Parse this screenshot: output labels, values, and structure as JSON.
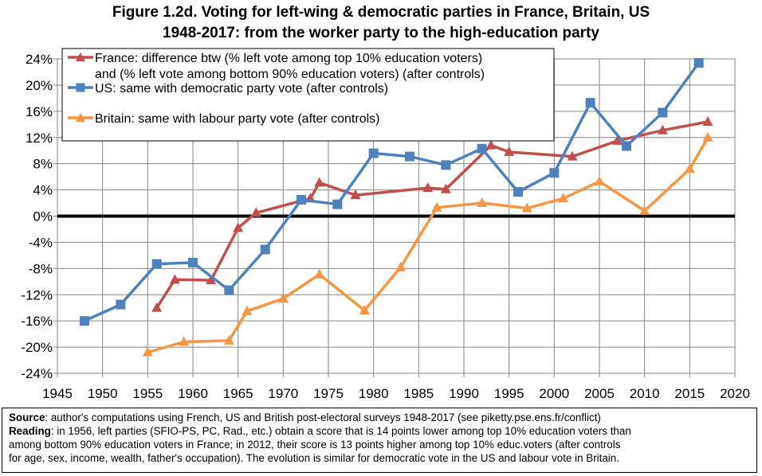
{
  "title_line1": "Figure 1.2d. Voting for left-wing & democratic parties in France, Britain, US",
  "title_line2": "1948-2017: from the worker party to the high-education party",
  "chart_data": {
    "type": "line",
    "title": "Figure 1.2d. Voting for left-wing & democratic parties in France, Britain, US 1948-2017: from the worker party to the high-education party",
    "xlabel": "",
    "ylabel": "",
    "xlim": [
      1945,
      2020
    ],
    "ylim": [
      -24,
      24
    ],
    "x_ticks": [
      1945,
      1950,
      1955,
      1960,
      1965,
      1970,
      1975,
      1980,
      1985,
      1990,
      1995,
      2000,
      2005,
      2010,
      2015,
      2020
    ],
    "y_ticks": [
      -24,
      -20,
      -16,
      -12,
      -8,
      -4,
      0,
      4,
      8,
      12,
      16,
      20,
      24
    ],
    "y_tick_labels": [
      "-24%",
      "-20%",
      "-16%",
      "-12%",
      "-8%",
      "-4%",
      "0%",
      "4%",
      "8%",
      "12%",
      "16%",
      "20%",
      "24%"
    ],
    "grid": true,
    "legend_position": "top-left",
    "series": [
      {
        "name": "France: difference btw (% left vote among top 10% education voters) and (% left vote among bottom 90% education voters) (after controls)",
        "legend_line1": "France: difference btw (% left vote among top 10% education voters)",
        "legend_line2": "and (% left vote among bottom 90% education voters) (after controls)",
        "color": "#c0504d",
        "marker": "triangle",
        "x": [
          1956,
          1958,
          1962,
          1965,
          1967,
          1973,
          1974,
          1978,
          1986,
          1988,
          1993,
          1995,
          2002,
          2007,
          2012,
          2017
        ],
        "y": [
          -14,
          -9.7,
          -9.8,
          -1.8,
          0.5,
          2.7,
          5.1,
          3.2,
          4.3,
          4.1,
          10.8,
          9.8,
          9.1,
          11.5,
          13.1,
          14.4
        ]
      },
      {
        "name": "US: same with democratic party vote (after controls)",
        "legend_line1": "US: same with democratic party vote (after controls)",
        "color": "#4f81bd",
        "marker": "square",
        "x": [
          1948,
          1952,
          1956,
          1960,
          1964,
          1968,
          1972,
          1976,
          1980,
          1984,
          1988,
          1992,
          1996,
          2000,
          2004,
          2008,
          2012,
          2016
        ],
        "y": [
          -16,
          -13.5,
          -7.3,
          -7.1,
          -11.3,
          -5.1,
          2.5,
          1.8,
          9.6,
          9.1,
          7.8,
          10.3,
          3.7,
          6.6,
          17.3,
          10.7,
          15.8,
          23.4
        ]
      },
      {
        "name": "Britain: same with labour party vote (after controls)",
        "legend_line1": "Britain: same with labour party vote (after controls)",
        "color": "#f79646",
        "marker": "triangle",
        "x": [
          1955,
          1959,
          1964,
          1966,
          1970,
          1974,
          1979,
          1983,
          1987,
          1992,
          1997,
          2001,
          2005,
          2010,
          2015,
          2017
        ],
        "y": [
          -20.8,
          -19.2,
          -19.0,
          -14.5,
          -12.6,
          -8.9,
          -14.4,
          -7.8,
          1.3,
          2.0,
          1.2,
          2.7,
          5.3,
          0.8,
          7.2,
          12.0
        ]
      }
    ]
  },
  "notes": {
    "source_label": "Source",
    "source_text": ": author's computations using French, US and British post-electoral surveys 1948-2017 (see piketty.pse.ens.fr/conflict)",
    "reading_label": "Reading",
    "reading_text_1": ": in 1956, left parties (SFIO-PS, PC, Rad., etc.) obtain a score that is 14 points lower among top 10% education voters than",
    "reading_text_2": "among bottom 90% education voters in France; in 2012, their score is 13 points higher among top 10% educ.voters (after controls",
    "reading_text_3": "for age, sex, income, wealth, father's occupation). The evolution is similar for democratic vote in the US and labour vote in Britain."
  }
}
